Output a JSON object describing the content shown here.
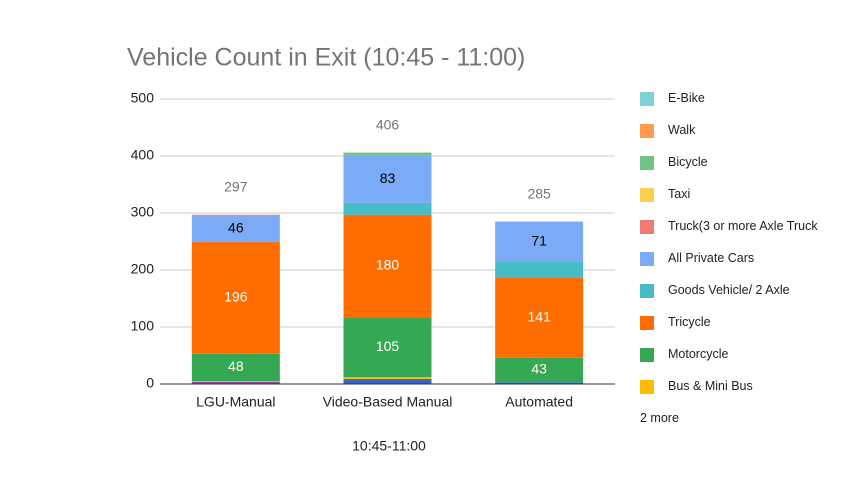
{
  "chart_data": {
    "type": "stacked_bar",
    "title": "Vehicle Count in Exit (10:45 - 11:00)",
    "x_label": "10:45-11:00",
    "categories": [
      "LGU-Manual",
      "Video-Based Manual",
      "Automated"
    ],
    "series": [
      {
        "color": "#3366cc",
        "values": [
          0,
          7,
          3
        ]
      },
      {
        "color": "#994499",
        "values": [
          4,
          2,
          0
        ]
      },
      {
        "name": "Bus & Mini Bus",
        "color": "#fbbc04",
        "values": [
          1,
          3,
          0
        ]
      },
      {
        "name": "Motorcycle",
        "color": "#34a853",
        "values": [
          48,
          105,
          43
        ]
      },
      {
        "name": "Tricycle",
        "color": "#ff6d01",
        "values": [
          196,
          180,
          141
        ]
      },
      {
        "name": "Goods Vehicle/ 2 Axle",
        "color": "#46bdc6",
        "values": [
          0,
          21,
          27
        ]
      },
      {
        "name": "All Private Cars",
        "color": "#7baaf7",
        "values": [
          46,
          83,
          71
        ]
      },
      {
        "name": "Truck(3 or more Axle Truck",
        "color": "#f07b72",
        "values": [
          2,
          0,
          0
        ]
      },
      {
        "name": "Taxi",
        "color": "#fcd04f",
        "values": [
          0,
          0,
          0
        ]
      },
      {
        "name": "Bicycle",
        "color": "#71c287",
        "values": [
          0,
          5,
          0
        ]
      },
      {
        "name": "Walk",
        "color": "#ff994d",
        "values": [
          0,
          0,
          0
        ]
      },
      {
        "name": "E-Bike",
        "color": "#7ed1d7",
        "values": [
          0,
          0,
          0
        ]
      }
    ],
    "totals": [
      297,
      406,
      285
    ],
    "legend_more": "2 more",
    "ylim": [
      0,
      500
    ],
    "yticks": [
      0,
      100,
      200,
      300,
      400,
      500
    ],
    "grid": true
  }
}
